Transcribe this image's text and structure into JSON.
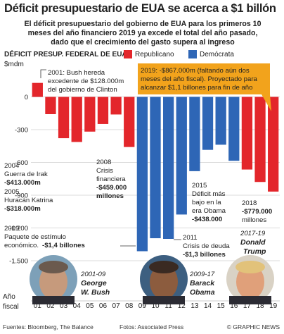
{
  "title": "Déficit presupuestario de EUA se acerca a $1 billón",
  "subtitle": "El déficit presupuestario del gobierno de EUA para los primeros 10 meses del año financiero 2019 ya excede el total del año pasado, dado que el crecimiento del gasto supera al ingreso",
  "subtitle_lines": [
    "El déficit presupuestario del gobierno de EUA para los primeros 10",
    "meses del año financiero 2019 ya excede el total del año pasado,",
    "dado que el crecimiento del gasto supera al ingreso"
  ],
  "legend": {
    "title": "DÉFICIT PRESUP. FEDERAL DE EUA",
    "republican": "Republicano",
    "democrat": "Demócrata"
  },
  "colors": {
    "republican": "#e3262b",
    "democrat": "#2e66b6",
    "callout_bg": "#f2a31c",
    "grid": "#cfcfcf"
  },
  "unit": "$mdm",
  "footer": {
    "sources": "Fuentes: Bloomberg, The Balance",
    "photos": "Fotos: Associated Press",
    "credit": "© GRAPHIC NEWS"
  },
  "chart_data": {
    "type": "bar",
    "xlabel": "Año fiscal",
    "ylabel": "$mdm",
    "ylim": [
      -1500,
      150
    ],
    "yticks": [
      0,
      -300,
      -600,
      -900,
      -1200,
      -1500
    ],
    "ytick_labels": [
      "0",
      "-300",
      "-600",
      "-900",
      "-1.200",
      "-1.500"
    ],
    "grid": true,
    "categories": [
      "01",
      "02",
      "03",
      "04",
      "05",
      "06",
      "07",
      "08",
      "09",
      "10",
      "11",
      "12",
      "13",
      "14",
      "15",
      "16",
      "17",
      "18",
      "19"
    ],
    "values": [
      128,
      -158,
      -378,
      -413,
      -318,
      -248,
      -161,
      -459,
      -1413,
      -1294,
      -1300,
      -1077,
      -680,
      -485,
      -438,
      -585,
      -665,
      -779,
      -867
    ],
    "party": [
      "R",
      "R",
      "R",
      "R",
      "R",
      "R",
      "R",
      "R",
      "D",
      "D",
      "D",
      "D",
      "D",
      "D",
      "D",
      "D",
      "R",
      "R",
      "R"
    ],
    "annotations": [
      {
        "year": "2001",
        "lines": [
          "2001: Bush hereda",
          "excedente de $128.000m",
          "del gobierno de Clinton"
        ]
      },
      {
        "year": "2004",
        "lines": [
          "2004",
          "Guerra de Irak",
          "-$413.000m"
        ]
      },
      {
        "year": "2005",
        "lines": [
          "2005",
          "Huracán Katrina",
          "-$318.000m"
        ]
      },
      {
        "year": "2008",
        "lines": [
          "2008",
          "Crisis",
          "financiera",
          "-$459.000",
          "millones"
        ]
      },
      {
        "year": "2009",
        "lines": [
          "2009",
          "Paquete de estímulo",
          "económico. -$1,4 billones"
        ]
      },
      {
        "year": "2011",
        "lines": [
          "2011",
          "Crisis de deuda",
          "-$1,3 billones"
        ]
      },
      {
        "year": "2015",
        "lines": [
          "2015",
          "Déficit más",
          "bajo en la",
          "era Obama",
          "-$438.000"
        ]
      },
      {
        "year": "2018",
        "lines": [
          "2018",
          "-$779.000",
          "millones"
        ]
      },
      {
        "year": "2019",
        "lines": [
          "2019: -$867.000m (faltando aún dos",
          "meses del año fiscal). Proyectado para",
          "alcanzar $1,1 billones para fin de año"
        ]
      }
    ],
    "presidents": [
      {
        "years": "2001-09",
        "name": "George W. Bush",
        "name_lines": [
          "George",
          "W. Bush"
        ]
      },
      {
        "years": "2009-17",
        "name": "Barack Obama",
        "name_lines": [
          "Barack",
          "Obama"
        ]
      },
      {
        "years": "2017-19",
        "name": "Donald Trump",
        "name_lines": [
          "Donald",
          "Trump"
        ]
      }
    ]
  }
}
